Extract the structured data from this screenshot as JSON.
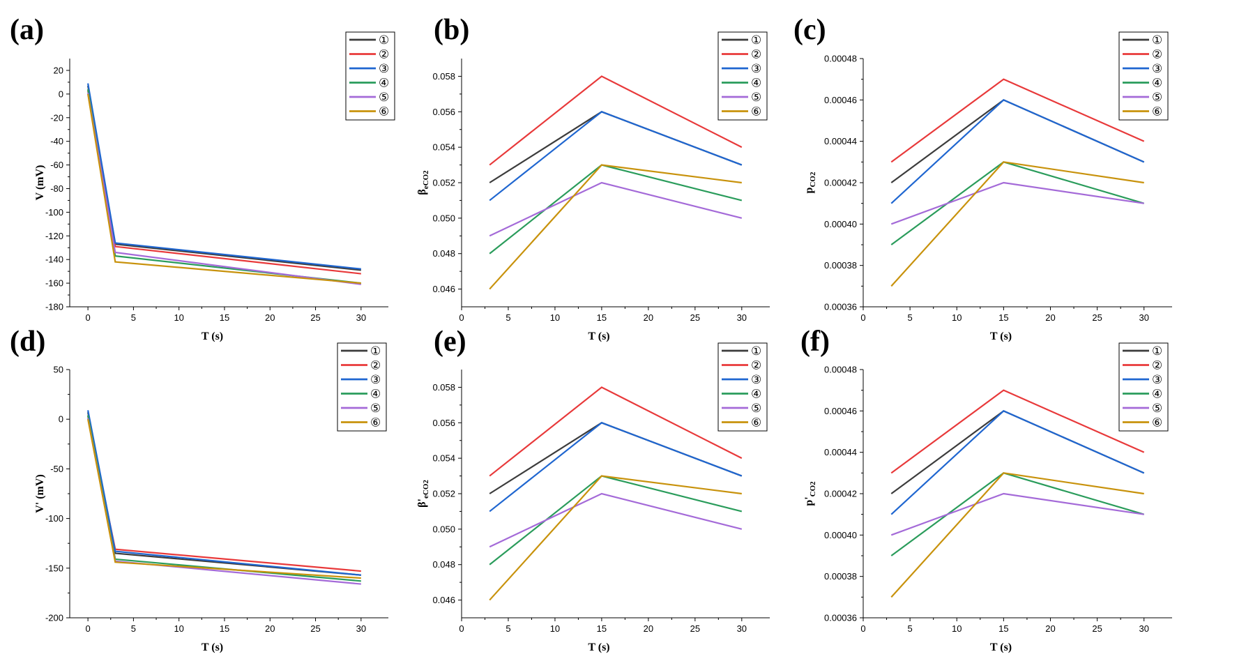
{
  "chart_data": [
    {
      "panel": "(a)",
      "type": "line",
      "xlabel": "T (s)",
      "ylabel": "V (mV)",
      "xlim": [
        -2,
        33
      ],
      "ylim": [
        -180,
        30
      ],
      "xticks": [
        0,
        5,
        10,
        15,
        20,
        25,
        30
      ],
      "yticks": [
        -180,
        -160,
        -140,
        -120,
        -100,
        -80,
        -60,
        -40,
        -20,
        0,
        20
      ],
      "x": [
        0,
        3,
        30
      ],
      "series": [
        {
          "name": "①",
          "color": "#3c3c3c",
          "values": [
            7,
            -127,
            -149
          ]
        },
        {
          "name": "②",
          "color": "#e8393a",
          "values": [
            3,
            -129,
            -152
          ]
        },
        {
          "name": "③",
          "color": "#1f66d0",
          "values": [
            9,
            -126,
            -148
          ]
        },
        {
          "name": "④",
          "color": "#2a9c5b",
          "values": [
            4,
            -137,
            -160
          ]
        },
        {
          "name": "⑤",
          "color": "#a46ad8",
          "values": [
            1,
            -134,
            -161
          ]
        },
        {
          "name": "⑥",
          "color": "#c8920c",
          "values": [
            0,
            -142,
            -160
          ]
        }
      ]
    },
    {
      "panel": "(b)",
      "type": "line",
      "xlabel": "T (s)",
      "ylabel": "β",
      "ylabel_sub": "eCO2",
      "xlim": [
        0,
        33
      ],
      "ylim": [
        0.045,
        0.059
      ],
      "xticks": [
        0,
        5,
        10,
        15,
        20,
        25,
        30
      ],
      "yticks": [
        "0.046",
        "0.048",
        "0.050",
        "0.052",
        "0.054",
        "0.056",
        "0.058"
      ],
      "x": [
        3,
        15,
        30
      ],
      "series": [
        {
          "name": "①",
          "color": "#3c3c3c",
          "values": [
            0.052,
            0.056,
            0.053
          ]
        },
        {
          "name": "②",
          "color": "#e8393a",
          "values": [
            0.053,
            0.058,
            0.054
          ]
        },
        {
          "name": "③",
          "color": "#1f66d0",
          "values": [
            0.051,
            0.056,
            0.053
          ]
        },
        {
          "name": "④",
          "color": "#2a9c5b",
          "values": [
            0.048,
            0.053,
            0.051
          ]
        },
        {
          "name": "⑤",
          "color": "#a46ad8",
          "values": [
            0.049,
            0.052,
            0.05
          ]
        },
        {
          "name": "⑥",
          "color": "#c8920c",
          "values": [
            0.046,
            0.053,
            0.052
          ]
        }
      ]
    },
    {
      "panel": "(c)",
      "type": "line",
      "xlabel": "T (s)",
      "ylabel": "p",
      "ylabel_sub": "CO2",
      "xlim": [
        0,
        33
      ],
      "ylim": [
        0.00036,
        0.00048
      ],
      "xticks": [
        0,
        5,
        10,
        15,
        20,
        25,
        30
      ],
      "yticks": [
        "0.00036",
        "0.00038",
        "0.00040",
        "0.00042",
        "0.00044",
        "0.00046",
        "0.00048"
      ],
      "x": [
        3,
        15,
        30
      ],
      "series": [
        {
          "name": "①",
          "color": "#3c3c3c",
          "values": [
            0.00042,
            0.00046,
            0.00043
          ]
        },
        {
          "name": "②",
          "color": "#e8393a",
          "values": [
            0.00043,
            0.00047,
            0.00044
          ]
        },
        {
          "name": "③",
          "color": "#1f66d0",
          "values": [
            0.00041,
            0.00046,
            0.00043
          ]
        },
        {
          "name": "④",
          "color": "#2a9c5b",
          "values": [
            0.00039,
            0.00043,
            0.00041
          ]
        },
        {
          "name": "⑤",
          "color": "#a46ad8",
          "values": [
            0.0004,
            0.00042,
            0.00041
          ]
        },
        {
          "name": "⑥",
          "color": "#c8920c",
          "values": [
            0.00037,
            0.00043,
            0.00042
          ]
        }
      ]
    },
    {
      "panel": "(d)",
      "type": "line",
      "xlabel": "T (s)",
      "ylabel": "V' (mV)",
      "xlim": [
        -2,
        33
      ],
      "ylim": [
        -200,
        50
      ],
      "xticks": [
        0,
        5,
        10,
        15,
        20,
        25,
        30
      ],
      "yticks": [
        -200,
        -150,
        -100,
        -50,
        0,
        50
      ],
      "x": [
        0,
        3,
        30
      ],
      "series": [
        {
          "name": "①",
          "color": "#3c3c3c",
          "values": [
            7,
            -135,
            -157
          ]
        },
        {
          "name": "②",
          "color": "#e8393a",
          "values": [
            3,
            -131,
            -153
          ]
        },
        {
          "name": "③",
          "color": "#1f66d0",
          "values": [
            9,
            -133,
            -157
          ]
        },
        {
          "name": "④",
          "color": "#2a9c5b",
          "values": [
            4,
            -141,
            -163
          ]
        },
        {
          "name": "⑤",
          "color": "#a46ad8",
          "values": [
            1,
            -143,
            -166
          ]
        },
        {
          "name": "⑥",
          "color": "#c8920c",
          "values": [
            0,
            -144,
            -160
          ]
        }
      ]
    },
    {
      "panel": "(e)",
      "type": "line",
      "xlabel": "T (s)",
      "ylabel": "β'",
      "ylabel_sub": "eCO2",
      "xlim": [
        0,
        33
      ],
      "ylim": [
        0.045,
        0.059
      ],
      "xticks": [
        0,
        5,
        10,
        15,
        20,
        25,
        30
      ],
      "yticks": [
        "0.046",
        "0.048",
        "0.050",
        "0.052",
        "0.054",
        "0.056",
        "0.058"
      ],
      "x": [
        3,
        15,
        30
      ],
      "series": [
        {
          "name": "①",
          "color": "#3c3c3c",
          "values": [
            0.052,
            0.056,
            0.053
          ]
        },
        {
          "name": "②",
          "color": "#e8393a",
          "values": [
            0.053,
            0.058,
            0.054
          ]
        },
        {
          "name": "③",
          "color": "#1f66d0",
          "values": [
            0.051,
            0.056,
            0.053
          ]
        },
        {
          "name": "④",
          "color": "#2a9c5b",
          "values": [
            0.048,
            0.053,
            0.051
          ]
        },
        {
          "name": "⑤",
          "color": "#a46ad8",
          "values": [
            0.049,
            0.052,
            0.05
          ]
        },
        {
          "name": "⑥",
          "color": "#c8920c",
          "values": [
            0.046,
            0.053,
            0.052
          ]
        }
      ]
    },
    {
      "panel": "(f)",
      "type": "line",
      "xlabel": "T (s)",
      "ylabel": "p'",
      "ylabel_sub": "CO2",
      "xlim": [
        0,
        33
      ],
      "ylim": [
        0.00036,
        0.00048
      ],
      "xticks": [
        0,
        5,
        10,
        15,
        20,
        25,
        30
      ],
      "yticks": [
        "0.00036",
        "0.00038",
        "0.00040",
        "0.00042",
        "0.00044",
        "0.00046",
        "0.00048"
      ],
      "x": [
        3,
        15,
        30
      ],
      "series": [
        {
          "name": "①",
          "color": "#3c3c3c",
          "values": [
            0.00042,
            0.00046,
            0.00043
          ]
        },
        {
          "name": "②",
          "color": "#e8393a",
          "values": [
            0.00043,
            0.00047,
            0.00044
          ]
        },
        {
          "name": "③",
          "color": "#1f66d0",
          "values": [
            0.00041,
            0.00046,
            0.00043
          ]
        },
        {
          "name": "④",
          "color": "#2a9c5b",
          "values": [
            0.00039,
            0.00043,
            0.00041
          ]
        },
        {
          "name": "⑤",
          "color": "#a46ad8",
          "values": [
            0.0004,
            0.00042,
            0.00041
          ]
        },
        {
          "name": "⑥",
          "color": "#c8920c",
          "values": [
            0.00037,
            0.00043,
            0.00042
          ]
        }
      ]
    }
  ]
}
